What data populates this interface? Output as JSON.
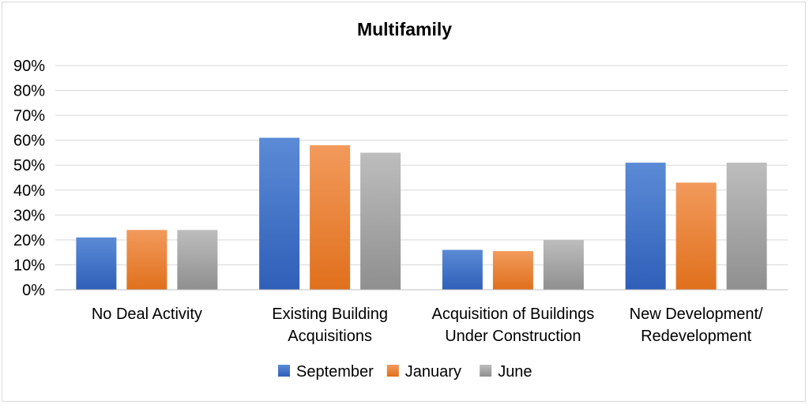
{
  "chart_data": {
    "type": "bar",
    "title": "Multifamily",
    "categories": [
      [
        "No Deal Activity"
      ],
      [
        "Existing Building",
        "Acquisitions"
      ],
      [
        "Acquisition of Buildings",
        "Under Construction"
      ],
      [
        "New Development/",
        "Redevelopment"
      ]
    ],
    "series": [
      {
        "name": "September",
        "color": "#4472c4",
        "values": [
          21,
          61,
          16,
          51
        ]
      },
      {
        "name": "January",
        "color": "#ed7d31",
        "values": [
          24,
          58,
          15.5,
          43
        ]
      },
      {
        "name": "June",
        "color": "#a5a5a5",
        "values": [
          24,
          55,
          20,
          51
        ]
      }
    ],
    "ylim": [
      0,
      90
    ],
    "yticks": [
      "0%",
      "10%",
      "20%",
      "30%",
      "40%",
      "50%",
      "60%",
      "70%",
      "80%",
      "90%"
    ],
    "xlabel": "",
    "ylabel": "",
    "grid": true,
    "legend_position": "bottom"
  }
}
